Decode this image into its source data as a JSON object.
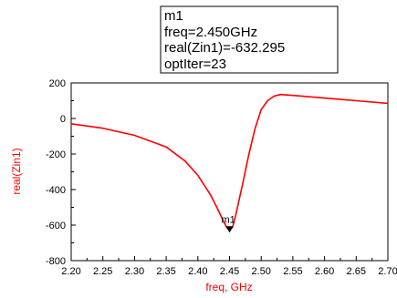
{
  "chart_data": {
    "type": "line",
    "xlabel": "freq, GHz",
    "ylabel": "real(Zin1)",
    "xlim": [
      2.2,
      2.7
    ],
    "ylim": [
      -800,
      200
    ],
    "x_ticks": [
      2.2,
      2.25,
      2.3,
      2.35,
      2.4,
      2.45,
      2.5,
      2.55,
      2.6,
      2.65,
      2.7
    ],
    "x_tick_labels": [
      "2.20",
      "2.25",
      "2.30",
      "2.35",
      "2.40",
      "2.45",
      "2.50",
      "2.55",
      "2.60",
      "2.65",
      "2.70"
    ],
    "y_ticks": [
      200,
      0,
      -200,
      -400,
      -600,
      -800
    ],
    "y_tick_labels": [
      "200",
      "0",
      "-200",
      "-400",
      "-600",
      "-800"
    ],
    "grid": false,
    "series": [
      {
        "color": "#ff0000",
        "x": [
          2.2,
          2.25,
          2.3,
          2.35,
          2.38,
          2.4,
          2.42,
          2.43,
          2.44,
          2.445,
          2.45,
          2.455,
          2.46,
          2.47,
          2.48,
          2.49,
          2.5,
          2.51,
          2.52,
          2.53,
          2.55,
          2.6,
          2.65,
          2.7
        ],
        "y": [
          -30,
          -55,
          -95,
          -160,
          -240,
          -320,
          -430,
          -500,
          -575,
          -610,
          -632.295,
          -610,
          -540,
          -380,
          -210,
          -60,
          50,
          100,
          125,
          135,
          130,
          115,
          100,
          85
        ]
      }
    ],
    "marker": {
      "name": "m1",
      "x": 2.45,
      "y": -632.295,
      "readout": [
        "m1",
        "freq=2.450GHz",
        "real(Zin1)=-632.295",
        "optIter=23"
      ]
    }
  }
}
